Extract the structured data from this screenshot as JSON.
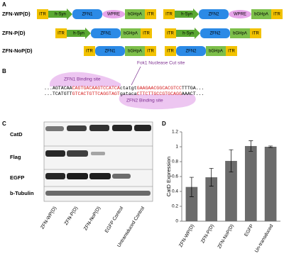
{
  "panel_a": {
    "label": "A",
    "rows": [
      {
        "name": "ZFN-WP(D)",
        "constructs": [
          [
            "ITR",
            "h-Syn",
            "ZFN1",
            "WPRE",
            "bGHpA",
            "ITR"
          ],
          [
            "ITR",
            "h-Syn",
            "ZFN2",
            "WPRE",
            "bGHpA",
            "ITR"
          ]
        ]
      },
      {
        "name": "ZFN-P(D)",
        "constructs": [
          [
            "ITR",
            "h-Syn",
            "ZFN1",
            "bGHpA",
            "ITR"
          ],
          [
            "ITR",
            "h-Syn",
            "ZFN2",
            "bGHpA",
            "ITR"
          ]
        ]
      },
      {
        "name": "ZFN-NoP(D)",
        "constructs": [
          [
            "ITR",
            "ZFN1",
            "bGHpA",
            "ITR"
          ],
          [
            "ITR",
            "ZFN2",
            "bGHpA",
            "ITR"
          ]
        ]
      }
    ]
  },
  "panel_b": {
    "label": "B",
    "cut_site": "Fok1 Nuclease Cut site",
    "zfn1_site": "ZFN1 Binding site",
    "zfn2_site": "ZFN2 Binding site",
    "highlight_color": "#d62020",
    "top_strand": [
      {
        "text": "...AGTACAA",
        "highlight": false
      },
      {
        "text": "CAGTGACAAGTCCATCA",
        "highlight": true
      },
      {
        "text": "ctatgt",
        "highlight": false
      },
      {
        "text": "GAAGAACGGCACGTCC",
        "highlight": true
      },
      {
        "text": "TTTGA...",
        "highlight": false
      }
    ],
    "bottom_strand": [
      {
        "text": "...TCATGTT",
        "highlight": false
      },
      {
        "text": "GTCACTGTTCAGGTAGT",
        "highlight": true
      },
      {
        "text": "gataca",
        "highlight": false
      },
      {
        "text": "CTTCTTGCCGTGCAGG",
        "highlight": true
      },
      {
        "text": "AAACT...",
        "highlight": false
      }
    ]
  },
  "panel_c": {
    "label": "C",
    "proteins": [
      "CatD",
      "Flag",
      "EGFP",
      "b-Tubulin"
    ],
    "lanes": [
      "ZFN-WP(D)",
      "ZFN-P(D)",
      "ZFN-NoP(D)",
      "EGFP Control",
      "Untransduced Control"
    ]
  },
  "chart_data": {
    "type": "bar",
    "label": "D",
    "ylabel": "CatD Expression",
    "categories": [
      "ZFN-WP(D)",
      "ZFN-P(D)",
      "ZFN-NoP(D)",
      "EGFP",
      "Un-transduced"
    ],
    "values": [
      0.46,
      0.59,
      0.81,
      1.01,
      1.0
    ],
    "errors": [
      0.13,
      0.12,
      0.15,
      0.07,
      0.01
    ],
    "color": "#6b6b6b",
    "ylim": [
      0,
      1.2
    ],
    "yticks": [
      0,
      0.2,
      0.4,
      0.6,
      0.8,
      1,
      1.2
    ]
  }
}
